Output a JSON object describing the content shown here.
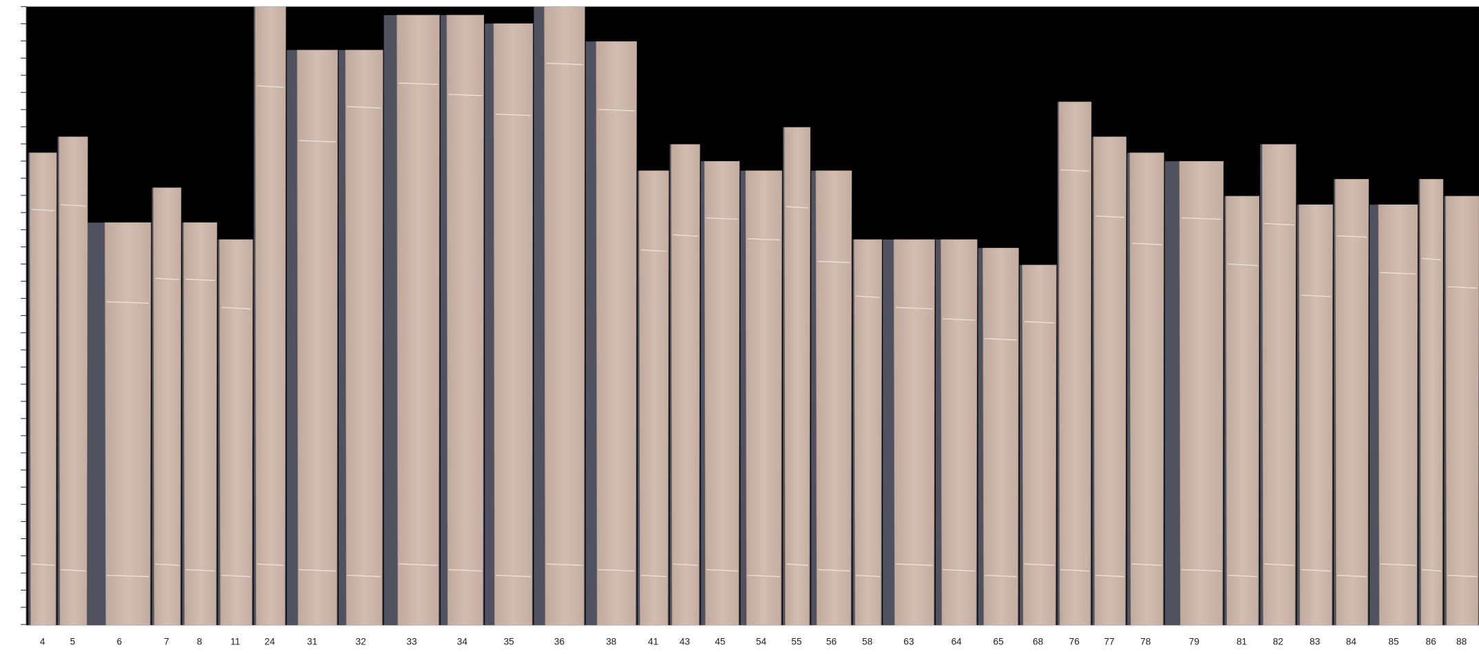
{
  "labels": [
    "4",
    "5",
    "6",
    "7",
    "8",
    "11",
    "24",
    "31",
    "32",
    "33",
    "34",
    "35",
    "36",
    "38",
    "41",
    "43",
    "45",
    "54",
    "55",
    "56",
    "58",
    "63",
    "64",
    "65",
    "68",
    "76",
    "77",
    "78",
    "79",
    "81",
    "82",
    "83",
    "84",
    "85",
    "86",
    "88"
  ]
}
